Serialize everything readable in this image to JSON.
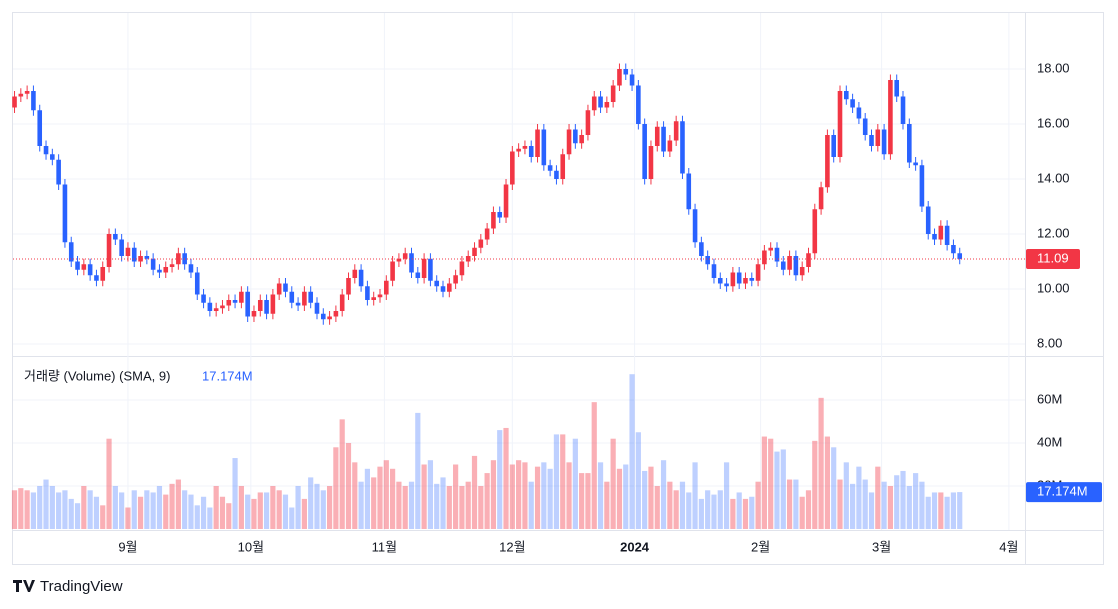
{
  "chart_data": {
    "type": "candlestick",
    "up_color": "#f23645",
    "down_color": "#2962ff",
    "up_volume_color": "rgba(242,54,69,0.4)",
    "down_volume_color": "rgba(41,98,255,0.3)",
    "open": [
      16.6,
      17.0,
      17.1,
      17.2,
      16.5,
      15.2,
      14.9,
      14.7,
      13.8,
      11.7,
      11.0,
      10.7,
      10.9,
      10.5,
      10.3,
      10.8,
      12.0,
      11.8,
      11.2,
      11.5,
      11.0,
      11.2,
      11.1,
      10.7,
      10.6,
      10.8,
      10.9,
      11.3,
      10.9,
      10.6,
      9.8,
      9.5,
      9.2,
      9.3,
      9.4,
      9.6,
      9.5,
      9.9,
      9.0,
      9.2,
      9.6,
      9.1,
      9.8,
      10.2,
      9.9,
      9.5,
      9.4,
      9.9,
      9.5,
      9.1,
      8.9,
      9.0,
      9.2,
      9.8,
      10.4,
      10.7,
      10.1,
      9.6,
      9.7,
      9.8,
      10.3,
      11.0,
      11.1,
      11.3,
      10.6,
      10.4,
      11.1,
      10.3,
      10.1,
      9.9,
      10.2,
      10.5,
      11.0,
      11.2,
      11.5,
      11.8,
      12.2,
      12.8,
      12.6,
      13.8,
      15.0,
      15.1,
      15.2,
      14.8,
      15.8,
      14.5,
      14.3,
      14.0,
      14.9,
      15.8,
      15.3,
      15.6,
      16.5,
      17.0,
      16.6,
      16.8,
      17.4,
      18.0,
      17.8,
      17.4,
      16.0,
      14.0,
      15.2,
      15.9,
      15.0,
      15.4,
      16.1,
      14.2,
      12.9,
      11.7,
      11.2,
      10.9,
      10.4,
      10.2,
      10.1,
      10.6,
      10.2,
      10.4,
      10.3,
      10.9,
      11.4,
      11.5,
      11.0,
      10.7,
      11.2,
      10.5,
      10.8,
      11.3,
      12.9,
      13.7,
      15.6,
      14.8,
      17.2,
      16.9,
      16.6,
      16.2,
      15.6,
      15.2,
      15.8,
      14.9,
      17.6,
      17.0,
      16.0,
      14.6,
      14.5,
      13.0,
      12.0,
      11.8,
      12.3,
      11.6,
      11.3
    ],
    "high": [
      17.2,
      17.3,
      17.4,
      17.4,
      16.7,
      15.4,
      15.1,
      14.9,
      14.0,
      11.9,
      11.2,
      11.1,
      11.1,
      10.7,
      11.0,
      12.2,
      12.2,
      12.0,
      11.7,
      11.7,
      11.4,
      11.4,
      11.3,
      10.9,
      11.0,
      11.1,
      11.5,
      11.5,
      11.1,
      10.8,
      10.0,
      9.7,
      9.5,
      9.6,
      9.8,
      9.8,
      10.1,
      10.1,
      9.4,
      9.8,
      9.8,
      10.0,
      10.4,
      10.4,
      10.1,
      9.7,
      10.1,
      10.1,
      9.7,
      9.3,
      9.2,
      9.4,
      10.0,
      10.6,
      10.9,
      10.9,
      10.3,
      9.9,
      10.0,
      10.5,
      11.2,
      11.3,
      11.5,
      11.5,
      10.8,
      11.3,
      11.3,
      10.5,
      10.3,
      10.4,
      10.7,
      11.2,
      11.4,
      11.7,
      12.0,
      12.4,
      13.0,
      13.0,
      14.0,
      15.2,
      15.3,
      15.4,
      15.4,
      16.0,
      16.0,
      14.7,
      14.5,
      15.1,
      16.0,
      16.0,
      15.8,
      16.7,
      17.2,
      17.2,
      17.0,
      17.6,
      18.2,
      18.2,
      18.0,
      17.6,
      16.2,
      15.4,
      16.1,
      16.1,
      15.6,
      16.3,
      16.3,
      14.4,
      13.1,
      11.9,
      11.4,
      11.1,
      10.6,
      10.4,
      10.8,
      10.8,
      10.6,
      10.6,
      11.1,
      11.6,
      11.7,
      11.7,
      11.2,
      11.4,
      11.4,
      11.0,
      11.5,
      13.1,
      13.9,
      15.8,
      15.8,
      17.4,
      17.4,
      17.1,
      16.8,
      16.4,
      15.8,
      16.0,
      16.0,
      17.8,
      17.8,
      17.2,
      16.2,
      14.8,
      14.7,
      13.2,
      12.2,
      12.5,
      12.5,
      11.8,
      11.5
    ],
    "low": [
      16.4,
      16.8,
      16.9,
      16.3,
      15.0,
      14.7,
      14.5,
      13.6,
      11.5,
      10.8,
      10.5,
      10.5,
      10.3,
      10.1,
      10.1,
      10.6,
      11.6,
      11.0,
      11.0,
      10.8,
      10.8,
      10.9,
      10.5,
      10.4,
      10.4,
      10.6,
      10.7,
      10.7,
      10.4,
      9.6,
      9.3,
      9.0,
      9.0,
      9.1,
      9.2,
      9.3,
      9.3,
      8.8,
      8.8,
      9.0,
      8.9,
      8.9,
      9.6,
      9.7,
      9.3,
      9.2,
      9.2,
      9.3,
      8.9,
      8.7,
      8.7,
      8.8,
      9.0,
      9.6,
      10.2,
      9.9,
      9.4,
      9.4,
      9.5,
      9.6,
      10.1,
      10.8,
      10.9,
      10.4,
      10.2,
      10.2,
      10.1,
      9.9,
      9.7,
      9.7,
      10.0,
      10.3,
      10.8,
      11.0,
      11.3,
      11.6,
      12.0,
      12.4,
      12.4,
      13.6,
      14.8,
      14.9,
      14.6,
      14.6,
      14.3,
      14.1,
      13.8,
      13.8,
      14.7,
      15.1,
      15.1,
      15.4,
      16.3,
      16.4,
      16.4,
      16.6,
      17.2,
      17.6,
      17.2,
      15.8,
      13.8,
      13.8,
      15.0,
      14.8,
      14.8,
      15.2,
      14.0,
      12.7,
      11.5,
      11.0,
      10.7,
      10.2,
      10.0,
      9.9,
      9.9,
      10.0,
      10.0,
      10.1,
      10.1,
      10.7,
      11.2,
      10.8,
      10.5,
      10.5,
      10.3,
      10.3,
      10.6,
      11.1,
      12.7,
      13.5,
      14.6,
      14.6,
      16.7,
      16.4,
      16.0,
      15.4,
      15.0,
      15.0,
      14.7,
      14.7,
      16.8,
      15.8,
      14.4,
      14.3,
      12.8,
      11.8,
      11.6,
      11.6,
      11.4,
      11.1,
      10.9
    ],
    "close": [
      17.0,
      17.1,
      17.2,
      16.5,
      15.2,
      14.9,
      14.7,
      13.8,
      11.7,
      11.0,
      10.7,
      10.9,
      10.5,
      10.3,
      10.8,
      12.0,
      11.8,
      11.2,
      11.5,
      11.0,
      11.2,
      11.1,
      10.7,
      10.6,
      10.8,
      10.9,
      11.3,
      10.9,
      10.6,
      9.8,
      9.5,
      9.2,
      9.3,
      9.4,
      9.6,
      9.5,
      9.9,
      9.0,
      9.2,
      9.6,
      9.1,
      9.8,
      10.2,
      9.9,
      9.5,
      9.4,
      9.9,
      9.5,
      9.1,
      8.9,
      9.0,
      9.2,
      9.8,
      10.4,
      10.7,
      10.1,
      9.6,
      9.7,
      9.8,
      10.3,
      11.0,
      11.1,
      11.3,
      10.6,
      10.4,
      11.1,
      10.3,
      10.1,
      9.9,
      10.2,
      10.5,
      11.0,
      11.2,
      11.5,
      11.8,
      12.2,
      12.8,
      12.6,
      13.8,
      15.0,
      15.1,
      15.2,
      14.8,
      15.8,
      14.5,
      14.3,
      14.0,
      14.9,
      15.8,
      15.3,
      15.6,
      16.5,
      17.0,
      16.6,
      16.8,
      17.4,
      18.0,
      17.8,
      17.4,
      16.0,
      14.0,
      15.2,
      15.9,
      15.0,
      15.4,
      16.1,
      14.2,
      12.9,
      11.7,
      11.2,
      10.9,
      10.4,
      10.2,
      10.1,
      10.6,
      10.2,
      10.4,
      10.3,
      10.9,
      11.4,
      11.5,
      11.0,
      10.7,
      11.2,
      10.5,
      10.8,
      11.3,
      12.9,
      13.7,
      15.6,
      14.8,
      17.2,
      16.9,
      16.6,
      16.2,
      15.6,
      15.2,
      15.8,
      14.9,
      17.6,
      17.0,
      16.0,
      14.6,
      14.5,
      13.0,
      12.0,
      11.8,
      12.3,
      11.6,
      11.3,
      11.09
    ],
    "volume": [
      18,
      19,
      18,
      17,
      20,
      23,
      20,
      17,
      18,
      14,
      12,
      20,
      18,
      15,
      11,
      42,
      20,
      17,
      10,
      18,
      15,
      18,
      17,
      20,
      16,
      21,
      23,
      18,
      16,
      11,
      15,
      10,
      20,
      15,
      12,
      33,
      20,
      16,
      14,
      17,
      17,
      20,
      18,
      16,
      10,
      20,
      14,
      24,
      21,
      18,
      20,
      38,
      51,
      40,
      31,
      22,
      28,
      24,
      29,
      32,
      28,
      22,
      20,
      22,
      54,
      30,
      32,
      21,
      24,
      20,
      30,
      20,
      22,
      34,
      20,
      26,
      32,
      46,
      47,
      30,
      32,
      31,
      22,
      29,
      31,
      28,
      44,
      44,
      31,
      42,
      26,
      26,
      59,
      31,
      22,
      42,
      28,
      30,
      72,
      45,
      27,
      29,
      20,
      32,
      22,
      18,
      22,
      17,
      31,
      14,
      18,
      16,
      18,
      31,
      14,
      17,
      14,
      15,
      22,
      43,
      42,
      36,
      37,
      23,
      23,
      15,
      18,
      41,
      61,
      43,
      38,
      23,
      31,
      21,
      29,
      23,
      17,
      29,
      22,
      20,
      25,
      27,
      20,
      26,
      22,
      15,
      17,
      17,
      15,
      17,
      17.174
    ],
    "xlim": [
      -0.4,
      160.2
    ],
    "xticks": [
      {
        "value": 18,
        "label": "9월"
      },
      {
        "value": 37.5,
        "label": "10월"
      },
      {
        "value": 58.7,
        "label": "11월"
      },
      {
        "value": 79,
        "label": "12월"
      },
      {
        "value": 98.4,
        "label": "2024"
      },
      {
        "value": 118.4,
        "label": "2월"
      },
      {
        "value": 137.6,
        "label": "3월"
      },
      {
        "value": 157.8,
        "label": "4월"
      }
    ],
    "ylim": [
      7.6,
      20.0
    ],
    "yticks": [
      {
        "value": 8,
        "label": "8.00"
      },
      {
        "value": 10,
        "label": "10.00"
      },
      {
        "value": 12,
        "label": "12.00"
      },
      {
        "value": 14,
        "label": "14.00"
      },
      {
        "value": 16,
        "label": "16.00"
      },
      {
        "value": 18,
        "label": "18.00"
      }
    ],
    "volume_ylim": [
      0,
      80
    ],
    "volume_yticks": [
      {
        "value": 20,
        "label": "20M"
      },
      {
        "value": 40,
        "label": "40M"
      },
      {
        "value": 60,
        "label": "60M"
      }
    ],
    "grid": true,
    "last_price": 11.09,
    "volume_legend": {
      "title": "거래량 (Volume) (SMA, 9)",
      "value": 17.174,
      "label": "17.174M"
    },
    "brand": "TradingView"
  }
}
